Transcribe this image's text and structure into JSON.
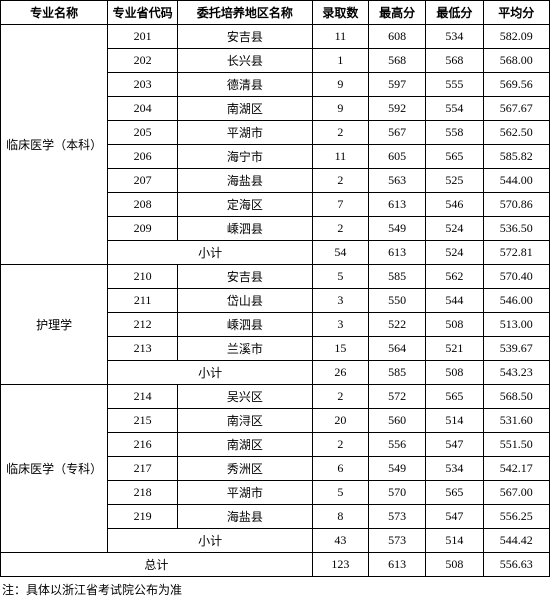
{
  "headers": {
    "major": "专业名称",
    "code": "专业省代码",
    "region": "委托培养地区名称",
    "count": "录取数",
    "max": "最高分",
    "min": "最低分",
    "avg": "平均分"
  },
  "groups": [
    {
      "major": "临床医学（本科）",
      "rows": [
        {
          "code": "201",
          "region": "安吉县",
          "count": "11",
          "max": "608",
          "min": "534",
          "avg": "582.09"
        },
        {
          "code": "202",
          "region": "长兴县",
          "count": "1",
          "max": "568",
          "min": "568",
          "avg": "568.00"
        },
        {
          "code": "203",
          "region": "德清县",
          "count": "9",
          "max": "597",
          "min": "555",
          "avg": "569.56"
        },
        {
          "code": "204",
          "region": "南湖区",
          "count": "9",
          "max": "592",
          "min": "554",
          "avg": "567.67"
        },
        {
          "code": "205",
          "region": "平湖市",
          "count": "2",
          "max": "567",
          "min": "558",
          "avg": "562.50"
        },
        {
          "code": "206",
          "region": "海宁市",
          "count": "11",
          "max": "605",
          "min": "565",
          "avg": "585.82"
        },
        {
          "code": "207",
          "region": "海盐县",
          "count": "2",
          "max": "563",
          "min": "525",
          "avg": "544.00"
        },
        {
          "code": "208",
          "region": "定海区",
          "count": "7",
          "max": "613",
          "min": "546",
          "avg": "570.86"
        },
        {
          "code": "209",
          "region": "嵊泗县",
          "count": "2",
          "max": "549",
          "min": "524",
          "avg": "536.50"
        }
      ],
      "subtotal": {
        "label": "小计",
        "count": "54",
        "max": "613",
        "min": "524",
        "avg": "572.81"
      }
    },
    {
      "major": "护理学",
      "rows": [
        {
          "code": "210",
          "region": "安吉县",
          "count": "5",
          "max": "585",
          "min": "562",
          "avg": "570.40"
        },
        {
          "code": "211",
          "region": "岱山县",
          "count": "3",
          "max": "550",
          "min": "544",
          "avg": "546.00"
        },
        {
          "code": "212",
          "region": "嵊泗县",
          "count": "3",
          "max": "522",
          "min": "508",
          "avg": "513.00"
        },
        {
          "code": "213",
          "region": "兰溪市",
          "count": "15",
          "max": "564",
          "min": "521",
          "avg": "539.67"
        }
      ],
      "subtotal": {
        "label": "小计",
        "count": "26",
        "max": "585",
        "min": "508",
        "avg": "543.23"
      }
    },
    {
      "major": "临床医学（专科）",
      "rows": [
        {
          "code": "214",
          "region": "吴兴区",
          "count": "2",
          "max": "572",
          "min": "565",
          "avg": "568.50"
        },
        {
          "code": "215",
          "region": "南浔区",
          "count": "20",
          "max": "560",
          "min": "514",
          "avg": "531.60"
        },
        {
          "code": "216",
          "region": "南湖区",
          "count": "2",
          "max": "556",
          "min": "547",
          "avg": "551.50"
        },
        {
          "code": "217",
          "region": "秀洲区",
          "count": "6",
          "max": "549",
          "min": "534",
          "avg": "542.17"
        },
        {
          "code": "218",
          "region": "平湖市",
          "count": "5",
          "max": "570",
          "min": "565",
          "avg": "567.00"
        },
        {
          "code": "219",
          "region": "海盐县",
          "count": "8",
          "max": "573",
          "min": "547",
          "avg": "556.25"
        }
      ],
      "subtotal": {
        "label": "小计",
        "count": "43",
        "max": "573",
        "min": "514",
        "avg": "544.42"
      }
    }
  ],
  "total": {
    "label": "总计",
    "count": "123",
    "max": "613",
    "min": "508",
    "avg": "556.63"
  },
  "note": "注：具体以浙江省考试院公布为准"
}
